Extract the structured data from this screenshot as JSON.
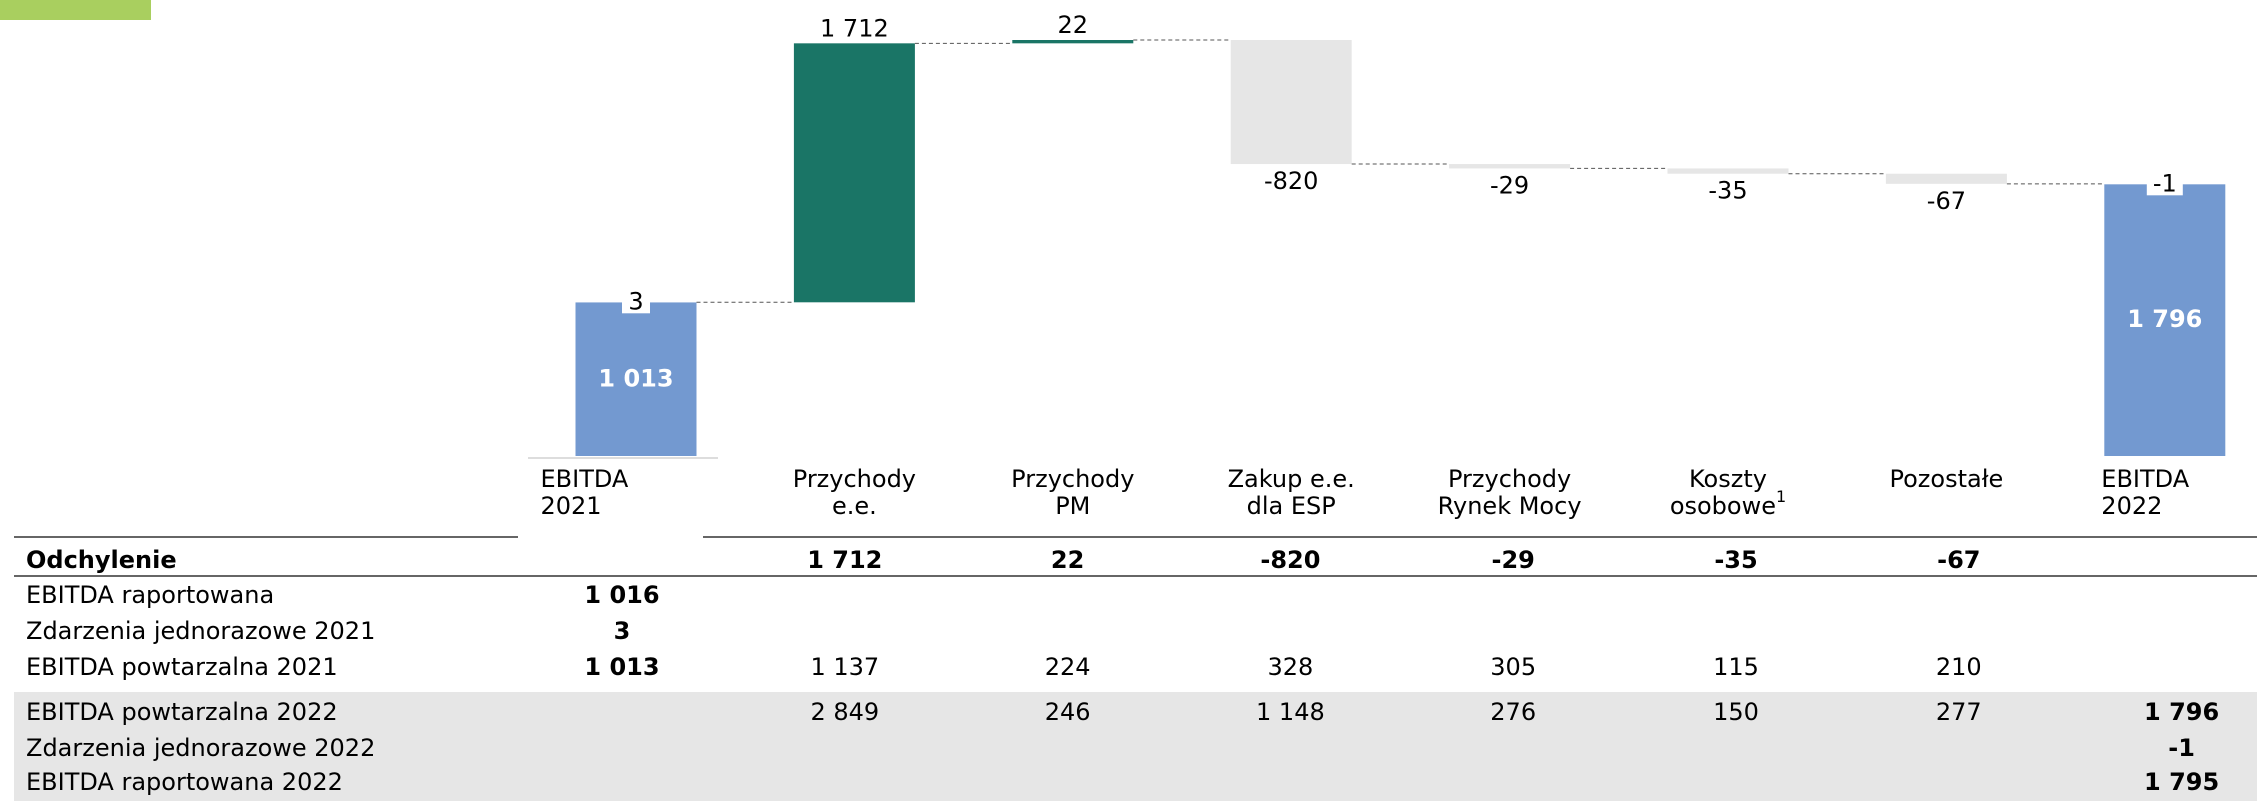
{
  "chart_data": {
    "type": "waterfall",
    "categories": [
      [
        "EBITDA",
        "2021"
      ],
      [
        "Przychody",
        "e.e."
      ],
      [
        "Przychody",
        "PM"
      ],
      [
        "Zakup e.e.",
        "dla ESP"
      ],
      [
        "Przychody",
        "Rynek Mocy"
      ],
      [
        "Koszty",
        "osobowe"
      ],
      [
        "Pozostałe"
      ],
      [
        "EBITDA",
        "2022"
      ]
    ],
    "category_footnotes": [
      null,
      null,
      null,
      null,
      null,
      "1",
      null,
      null
    ],
    "values": [
      1013,
      1712,
      22,
      -820,
      -29,
      -35,
      -67,
      1796
    ],
    "value_labels": [
      "1 013",
      "1 712",
      "22",
      "-820",
      "-29",
      "-35",
      "-67",
      "1 796"
    ],
    "start_one_off": 3,
    "end_one_off": -1,
    "colors": {
      "total": "#7399d0",
      "increase": "#1a7566",
      "decrease": "#e6e6e6"
    }
  },
  "table": {
    "rows": [
      {
        "label": "Odchylenie",
        "bold": true,
        "shaded": false,
        "cells": [
          null,
          "1 712",
          "22",
          "-820",
          "-29",
          "-35",
          "-67",
          null
        ]
      },
      {
        "label": "EBITDA raportowana",
        "bold": false,
        "shaded": false,
        "cells": [
          "1 016",
          null,
          null,
          null,
          null,
          null,
          null,
          null
        ]
      },
      {
        "label": "Zdarzenia jednorazowe 2021",
        "bold": false,
        "shaded": false,
        "cells": [
          "3",
          null,
          null,
          null,
          null,
          null,
          null,
          null
        ]
      },
      {
        "label": "EBITDA powtarzalna 2021",
        "bold": false,
        "shaded": false,
        "cells": [
          "1 013",
          "1 137",
          "224",
          "328",
          "305",
          "115",
          "210",
          null
        ]
      },
      {
        "label": "EBITDA powtarzalna 2022",
        "bold": false,
        "shaded": true,
        "cells": [
          null,
          "2 849",
          "246",
          "1 148",
          "276",
          "150",
          "277",
          "1 796"
        ]
      },
      {
        "label": "Zdarzenia jednorazowe 2022",
        "bold": false,
        "shaded": true,
        "cells": [
          null,
          null,
          null,
          null,
          null,
          null,
          null,
          "-1"
        ]
      },
      {
        "label": "EBITDA raportowana 2022",
        "bold": false,
        "shaded": true,
        "cells": [
          null,
          null,
          null,
          null,
          null,
          null,
          null,
          "1 795"
        ]
      }
    ]
  }
}
